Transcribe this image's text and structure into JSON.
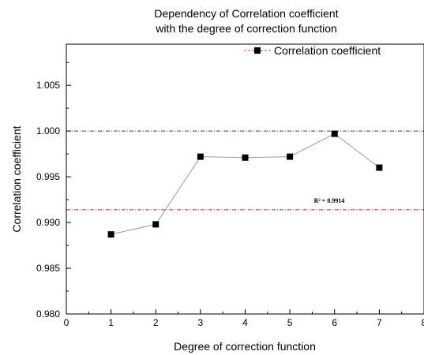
{
  "chart_data": {
    "type": "line",
    "title_line1": "Dependency of Correlation coefficient",
    "title_line2": "with the degree of correction function",
    "xlabel": "Degree of correction function",
    "ylabel": "Correlation coefficient",
    "xlim": [
      0,
      8
    ],
    "ylim": [
      0.98,
      1.0095
    ],
    "x_ticks": [
      "0",
      "1",
      "2",
      "3",
      "4",
      "5",
      "6",
      "7",
      "8"
    ],
    "y_ticks": [
      "0.980",
      "0.985",
      "0.990",
      "0.995",
      "1.000",
      "1.005"
    ],
    "grid": false,
    "legend_position": "top-right",
    "series": [
      {
        "name": "Correlation coefficient",
        "color": "#000000",
        "line_color": "#999999",
        "marker": "square",
        "x": [
          1,
          2,
          3,
          4,
          5,
          6,
          7
        ],
        "y": [
          0.9887,
          0.9898,
          0.9972,
          0.9971,
          0.9972,
          0.9997,
          0.996
        ]
      }
    ],
    "reference_lines": [
      {
        "y": 1.0,
        "color": "#3333cc",
        "style": "dash-dot"
      },
      {
        "y": 0.9914,
        "color": "#dd2222",
        "style": "dash-dot",
        "label": "R² = 0.9914"
      }
    ]
  }
}
